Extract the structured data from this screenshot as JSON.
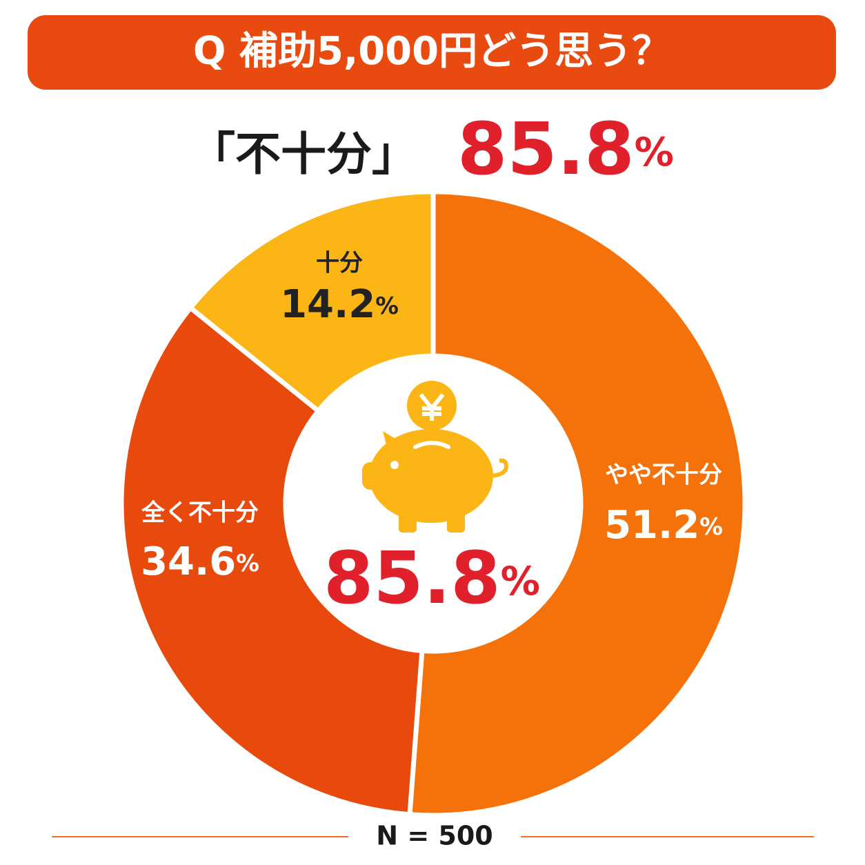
{
  "title": "Q 補助5,000円どう思う？",
  "headline": {
    "label": "「不十分」",
    "value": 85.8,
    "value_label": "85.8%"
  },
  "chart_data": {
    "type": "donut",
    "categories": [
      "やや不十分",
      "全く不十分",
      "十分"
    ],
    "values": [
      51.2,
      34.6,
      14.2
    ],
    "value_labels": [
      "51.2%",
      "34.6%",
      "14.2%"
    ],
    "colors": [
      "#f5720a",
      "#e8490c",
      "#fbb515"
    ],
    "center_value": 85.8,
    "center_label": "85.8%"
  },
  "footnote": "N = 500"
}
